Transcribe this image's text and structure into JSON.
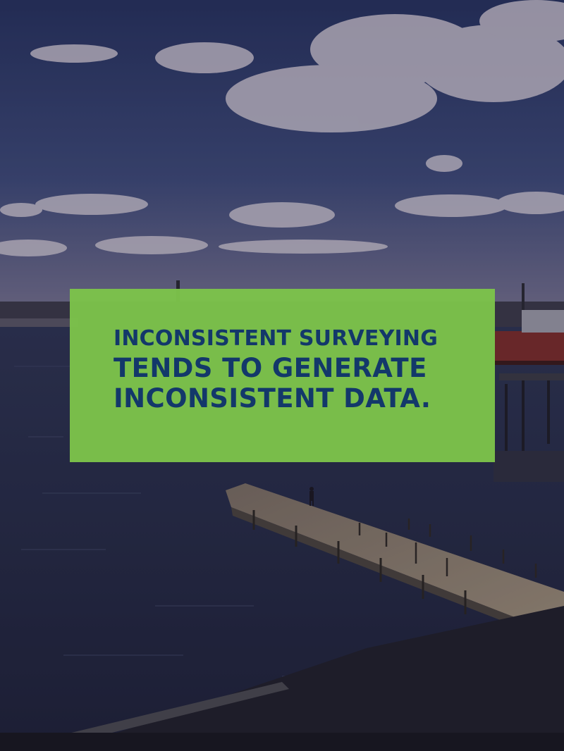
{
  "image": {
    "subject": "harbor-pier-scene",
    "colors": {
      "sky_top": "#2e3a66",
      "sky_horizon": "#6a6a88",
      "water": "#232a45",
      "pier": "#8a7b6a",
      "caption_background": "#7cc24a",
      "caption_text": "#13386a"
    }
  },
  "caption": {
    "line1": "INCONSISTENT SURVEYING",
    "line2": "TENDS TO GENERATE",
    "line3": "INCONSISTENT DATA."
  }
}
